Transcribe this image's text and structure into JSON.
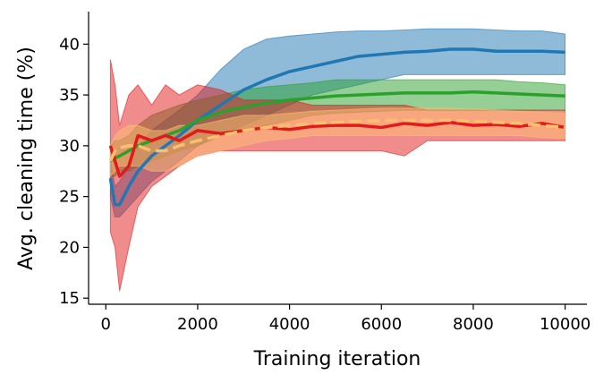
{
  "chart_data": {
    "type": "line",
    "xlabel": "Training iteration",
    "ylabel": "Avg. cleaning time (%)",
    "xlim": [
      -375,
      10475
    ],
    "ylim": [
      14.4,
      43.2
    ],
    "xticks": [
      0,
      2000,
      4000,
      6000,
      8000,
      10000
    ],
    "yticks": [
      15,
      20,
      25,
      30,
      35,
      40
    ],
    "x": [
      100,
      200,
      300,
      500,
      700,
      1000,
      1300,
      1600,
      2000,
      2500,
      3000,
      3500,
      4000,
      4500,
      5000,
      5500,
      6000,
      6500,
      7000,
      7500,
      8000,
      8500,
      9000,
      9500,
      10000
    ],
    "series": [
      {
        "color": "#1f77b4",
        "dash": false,
        "values": [
          26.8,
          24.2,
          24.2,
          26,
          27.5,
          29,
          30,
          31,
          32.5,
          34,
          35.5,
          36.5,
          37.3,
          37.8,
          38.3,
          38.8,
          39,
          39.2,
          39.3,
          39.5,
          39.5,
          39.3,
          39.3,
          39.3,
          39.2
        ],
        "lower": [
          25,
          23,
          23,
          24,
          25,
          26.5,
          27.5,
          28.5,
          30,
          31,
          32,
          33,
          34,
          35,
          35.5,
          36,
          36.5,
          37,
          37,
          37,
          37,
          37,
          37,
          37,
          37
        ],
        "upper": [
          28.5,
          26,
          26.5,
          28,
          30,
          31.5,
          32.5,
          33.5,
          35,
          37.5,
          39.5,
          40.5,
          40.8,
          41,
          41.2,
          41.3,
          41.3,
          41.4,
          41.5,
          41.5,
          41.5,
          41.4,
          41.3,
          41.3,
          41
        ]
      },
      {
        "color": "#2ca02c",
        "dash": false,
        "values": [
          28.5,
          28.8,
          29,
          29.5,
          30,
          30.5,
          31,
          31.5,
          32.5,
          33.3,
          33.8,
          34.2,
          34.5,
          34.7,
          34.9,
          35,
          35.1,
          35.2,
          35.2,
          35.2,
          35.3,
          35.2,
          35.1,
          35,
          34.9
        ],
        "lower": [
          27,
          27,
          27.5,
          27.5,
          28,
          28.5,
          29,
          29.5,
          30,
          31,
          31.5,
          32,
          32.5,
          33,
          33.2,
          33.3,
          33.4,
          33.5,
          33.5,
          33.5,
          33.5,
          33.5,
          33.5,
          33.5,
          33.5
        ],
        "upper": [
          30,
          30.5,
          30.5,
          31,
          32,
          33,
          33.5,
          34,
          34.5,
          35,
          35.5,
          35.8,
          36,
          36.2,
          36.5,
          36.5,
          36.5,
          36.5,
          36.5,
          36.5,
          36.5,
          36.5,
          36.3,
          36.2,
          36
        ]
      },
      {
        "color": "#e31a1c",
        "dash": false,
        "values": [
          30,
          28.5,
          27,
          28,
          31,
          30.5,
          31,
          30.5,
          31.5,
          31.2,
          31.5,
          31.8,
          31.6,
          31.9,
          32,
          32,
          31.8,
          32.2,
          32,
          32.3,
          32,
          32.1,
          31.9,
          32.2,
          31.8
        ],
        "lower": [
          21.5,
          20,
          15.7,
          20,
          24,
          26,
          27,
          28,
          29,
          29.5,
          29.5,
          29.5,
          29.5,
          29.5,
          29.5,
          29.5,
          29.5,
          29,
          30.5,
          30.5,
          30.5,
          30.5,
          30.5,
          30.5,
          30.5
        ],
        "upper": [
          38.5,
          36,
          32,
          35,
          36,
          34,
          36,
          35,
          36,
          35.5,
          34.5,
          34.5,
          34.5,
          34,
          34,
          34,
          34,
          34,
          33.5,
          33.5,
          33.5,
          33.5,
          33.5,
          33.5,
          33.5
        ]
      },
      {
        "color": "#fdbf6f",
        "dash": true,
        "values": [
          28.5,
          29.5,
          29.8,
          30,
          30,
          29.5,
          29.5,
          30,
          30.5,
          31,
          31.5,
          31.8,
          32,
          32.2,
          32.3,
          32.4,
          32.5,
          32.5,
          32.5,
          32.5,
          32.4,
          32.3,
          32.2,
          32,
          31.8
        ],
        "lower": [
          27,
          27.5,
          28,
          28,
          28,
          27.5,
          27.5,
          28,
          29,
          29.5,
          30,
          30.5,
          30.7,
          31,
          31,
          31,
          31,
          31,
          31,
          31,
          31,
          31,
          31,
          30.8,
          30.7
        ],
        "upper": [
          30,
          31,
          31.5,
          32,
          32,
          31.5,
          31.5,
          32,
          32,
          32.5,
          33,
          33,
          33.2,
          33.4,
          33.5,
          33.6,
          33.7,
          33.7,
          33.7,
          33.7,
          33.6,
          33.5,
          33.4,
          33.3,
          33.2
        ]
      }
    ]
  }
}
